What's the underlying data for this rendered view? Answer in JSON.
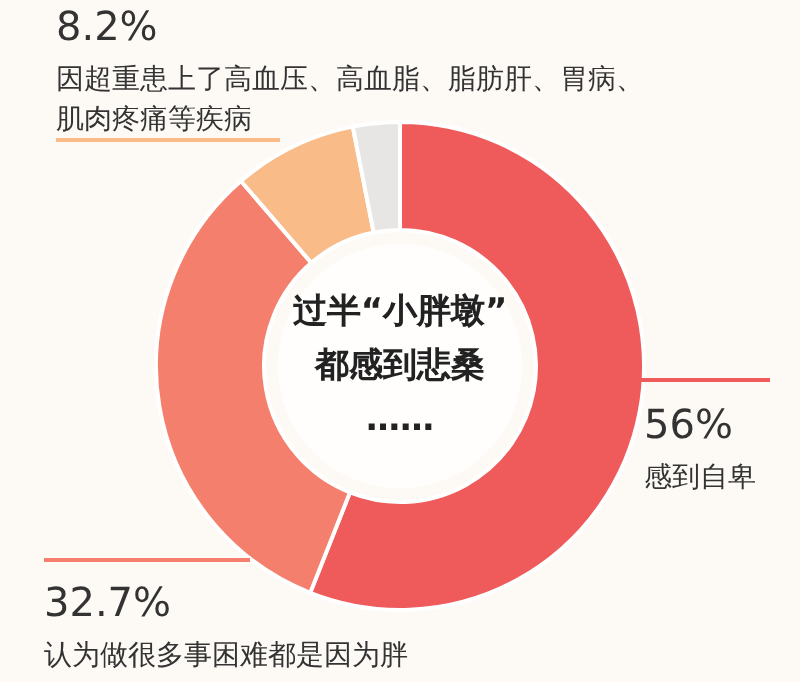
{
  "chart_data": {
    "type": "donut",
    "categories": [
      "感到自卑",
      "认为做很多事困难都是因为胖",
      "因超重患上了高血压、高血脂、脂肪肝、胃病、肌肉疼痛等疾病",
      null
    ],
    "values": [
      56,
      32.7,
      8.2,
      3.1
    ],
    "colors": [
      "#ef5b5b",
      "#f47f6c",
      "#f9bb88",
      "#e8e6e4"
    ],
    "value_labels": [
      "56%",
      "32.7%",
      "8.2%",
      null
    ],
    "annotations": [
      "过半“小胖墩”",
      "都感到悲桑",
      "……"
    ]
  }
}
